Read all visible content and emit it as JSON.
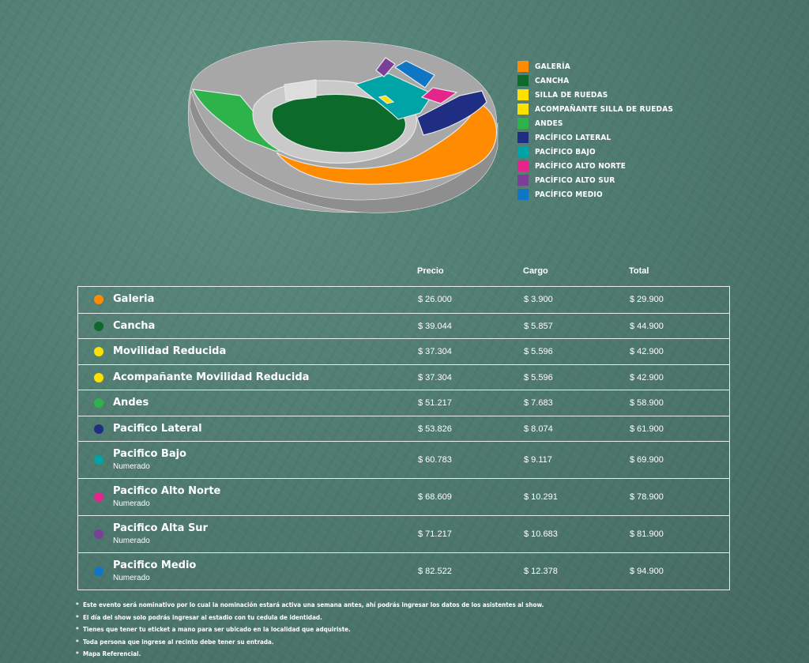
{
  "legend": [
    {
      "label": "GALERÍA",
      "color": "#ff8c00"
    },
    {
      "label": "CANCHA",
      "color": "#0c6b2a"
    },
    {
      "label": "SILLA DE RUEDAS",
      "color": "#ffe100"
    },
    {
      "label": "ACOMPAÑANTE SILLA DE RUEDAS",
      "color": "#ffe100"
    },
    {
      "label": "ANDES",
      "color": "#2db34a"
    },
    {
      "label": "PACÍFICO LATERAL",
      "color": "#1f2e83"
    },
    {
      "label": "PACÍFICO BAJO",
      "color": "#00a3a6"
    },
    {
      "label": "PACÍFICO ALTO NORTE",
      "color": "#e4268c"
    },
    {
      "label": "PACÍFICO ALTO SUR",
      "color": "#7b3f98"
    },
    {
      "label": "PACÍFICO MEDIO",
      "color": "#0f76c4"
    }
  ],
  "table": {
    "headers": {
      "price": "Precio",
      "charge": "Cargo",
      "total": "Total"
    },
    "rows": [
      {
        "name": "Galeria",
        "sub": "",
        "price": "$ 26.000",
        "charge": "$ 3.900",
        "total": "$ 29.900",
        "color": "#ff8c00"
      },
      {
        "name": "Cancha",
        "sub": "",
        "price": "$ 39.044",
        "charge": "$ 5.857",
        "total": "$ 44.900",
        "color": "#0c6b2a"
      },
      {
        "name": "Movilidad Reducida",
        "sub": "",
        "price": "$ 37.304",
        "charge": "$ 5.596",
        "total": "$ 42.900",
        "color": "#ffe100"
      },
      {
        "name": "Acompañante Movilidad Reducida",
        "sub": "",
        "price": "$ 37.304",
        "charge": "$ 5.596",
        "total": "$ 42.900",
        "color": "#ffe100"
      },
      {
        "name": "Andes",
        "sub": "",
        "price": "$ 51.217",
        "charge": "$ 7.683",
        "total": "$ 58.900",
        "color": "#2db34a"
      },
      {
        "name": "Pacifico Lateral",
        "sub": "",
        "price": "$ 53.826",
        "charge": "$ 8.074",
        "total": "$ 61.900",
        "color": "#1f2e83"
      },
      {
        "name": "Pacifico Bajo",
        "sub": "Numerado",
        "price": "$ 60.783",
        "charge": "$ 9.117",
        "total": "$ 69.900",
        "color": "#00a3a6"
      },
      {
        "name": "Pacifico Alto Norte",
        "sub": "Numerado",
        "price": "$ 68.609",
        "charge": "$ 10.291",
        "total": "$ 78.900",
        "color": "#e4268c"
      },
      {
        "name": "Pacifico Alta Sur",
        "sub": "Numerado",
        "price": "$ 71.217",
        "charge": "$ 10.683",
        "total": "$ 81.900",
        "color": "#7b3f98"
      },
      {
        "name": "Pacifico Medio",
        "sub": "Numerado",
        "price": "$ 82.522",
        "charge": "$ 12.378",
        "total": "$ 94.900",
        "color": "#0f76c4"
      }
    ]
  },
  "notes": [
    "Este evento será nominativo por lo cual la nominación estará activa una semana antes, ahí podrás ingresar los datos de los asistentes al show.",
    "El día del show solo podrás ingresar al estadio con tu cedula de identidad.",
    "Tienes que tener tu eticket a mano para ser ubicado en la localidad que adquiriste.",
    "Toda persona que ingrese al recinto debe tener su entrada.",
    "Mapa Referencial."
  ],
  "map": {
    "colors": {
      "galeria": "#ff8c00",
      "cancha": "#0c6b2a",
      "silla": "#ffe100",
      "andes": "#2db34a",
      "lateral": "#1f2e83",
      "bajo": "#00a3a6",
      "alto_norte": "#e4268c",
      "alto_sur": "#7b3f98",
      "medio": "#0f76c4",
      "concrete": "#a7a7a7",
      "concrete_dark": "#8e8e8e",
      "track": "#c9c9c9"
    }
  }
}
